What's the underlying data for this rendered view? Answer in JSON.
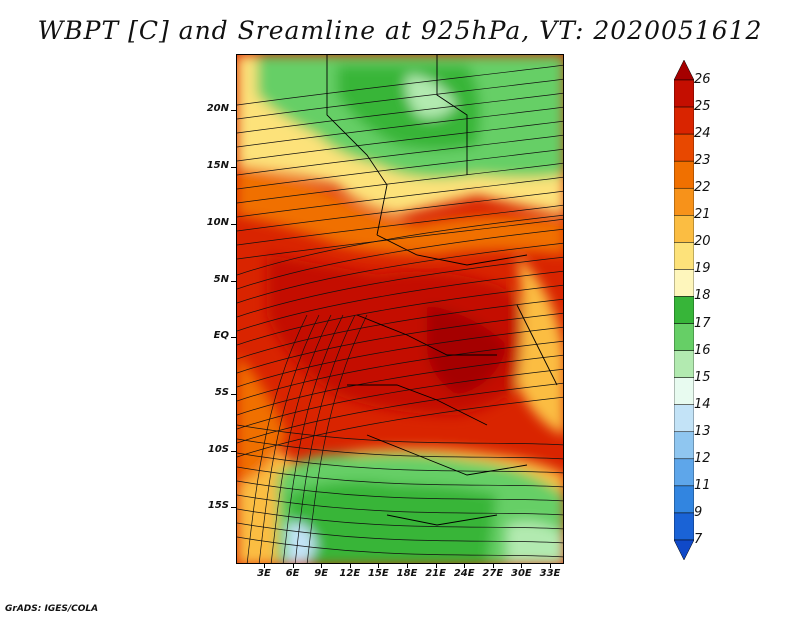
{
  "title": "WBPT [C] and Sreamline at 925hPa, VT: 2020051612",
  "footer": "GrADS: IGES/COLA",
  "lat_labels": [
    "20N",
    "15N",
    "10N",
    "5N",
    "EQ",
    "5S",
    "10S",
    "15S"
  ],
  "lon_labels": [
    "3E",
    "6E",
    "9E",
    "12E",
    "15E",
    "18E",
    "21E",
    "24E",
    "27E",
    "30E",
    "33E"
  ],
  "colorbar": {
    "labels": [
      "26",
      "25",
      "24",
      "23",
      "22",
      "21",
      "20",
      "19",
      "18",
      "17",
      "16",
      "15",
      "14",
      "13",
      "12",
      "11",
      "9",
      "7"
    ],
    "colors": [
      "#a50000",
      "#c40e00",
      "#d92400",
      "#e84800",
      "#f07000",
      "#f7921a",
      "#fbbd42",
      "#fde27a",
      "#fef6bc",
      "#37b539",
      "#66cf66",
      "#b2eab0",
      "#e8fbf0",
      "#c3e3f7",
      "#8fc6f0",
      "#5ea6ea",
      "#3285e0",
      "#1a63d6",
      "#1049c8"
    ]
  }
}
